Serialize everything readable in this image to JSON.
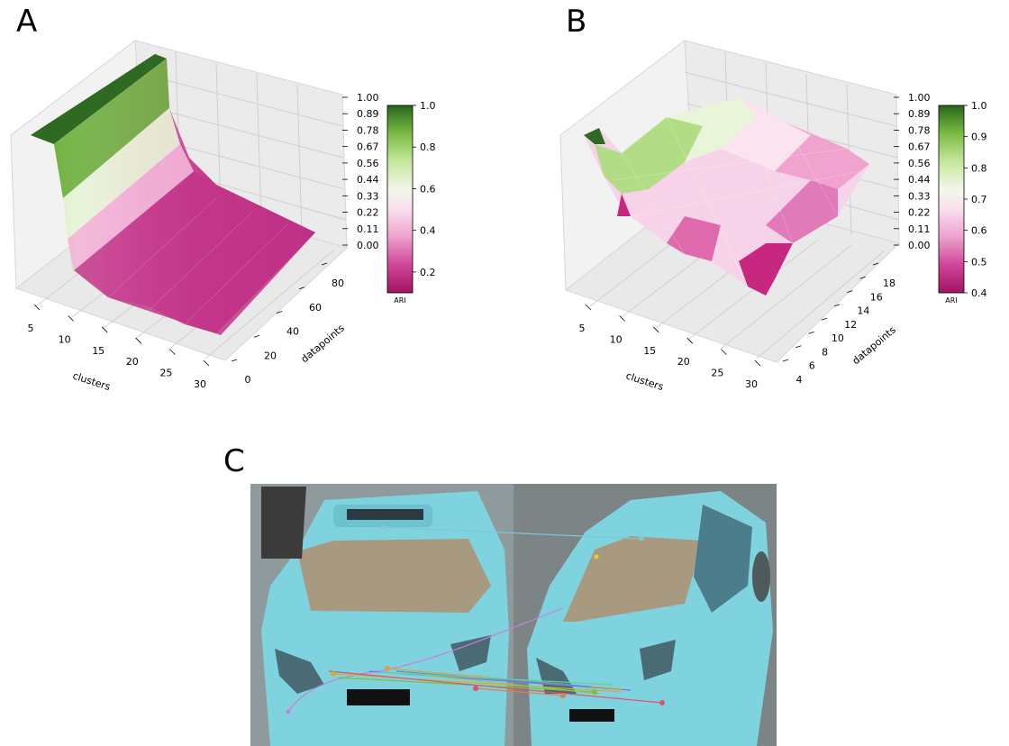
{
  "panels": {
    "a": "A",
    "b": "B",
    "c": "C"
  },
  "chart_data": [
    {
      "type": "surface3d",
      "panel": "A",
      "xlabel": "clusters",
      "ylabel": "datapoints",
      "x_ticks": [
        "5",
        "10",
        "15",
        "20",
        "25",
        "30"
      ],
      "y_ticks": [
        "0",
        "20",
        "40",
        "60",
        "80"
      ],
      "z_ticks": [
        "0.00",
        "0.11",
        "0.22",
        "0.33",
        "0.44",
        "0.56",
        "0.67",
        "0.78",
        "0.89",
        "1.00"
      ],
      "xlim": [
        2,
        30
      ],
      "ylim": [
        0,
        90
      ],
      "zlim": [
        0,
        1
      ],
      "colorbar": {
        "label": "ARI",
        "ticks": [
          "0.2",
          "0.4",
          "0.6",
          "0.8",
          "1.0"
        ],
        "range": [
          0.1,
          1.0
        ],
        "colormap": "PiYG"
      },
      "ari_by_cluster_index_approx": {
        "x": [
          2,
          3,
          4,
          5,
          6,
          8,
          10,
          15,
          20,
          25,
          30
        ],
        "z": [
          1.0,
          0.95,
          0.8,
          0.62,
          0.5,
          0.35,
          0.25,
          0.18,
          0.15,
          0.13,
          0.12
        ]
      },
      "grid": true
    },
    {
      "type": "surface3d",
      "panel": "B",
      "xlabel": "clusters",
      "ylabel": "datapoints",
      "x_ticks": [
        "5",
        "10",
        "15",
        "20",
        "25",
        "30"
      ],
      "y_ticks": [
        "4",
        "6",
        "8",
        "10",
        "12",
        "14",
        "16",
        "18"
      ],
      "z_ticks": [
        "0.00",
        "0.11",
        "0.22",
        "0.33",
        "0.44",
        "0.56",
        "0.67",
        "0.78",
        "0.89",
        "1.00"
      ],
      "xlim": [
        2,
        30
      ],
      "ylim": [
        3,
        19
      ],
      "zlim": [
        0,
        1
      ],
      "colorbar": {
        "label": "ARI",
        "ticks": [
          "0.4",
          "0.5",
          "0.6",
          "0.7",
          "0.8",
          "0.9",
          "1.0"
        ],
        "range": [
          0.4,
          1.0
        ],
        "colormap": "PiYG"
      },
      "ari_range_approx": [
        0.4,
        1.0
      ],
      "grid": true
    }
  ],
  "photo": {
    "description_colors": {
      "car_body": "#7fd3df",
      "road_left": "#8e9a9c",
      "road_right": "#7d8486",
      "windshield": "#a89a80"
    }
  }
}
